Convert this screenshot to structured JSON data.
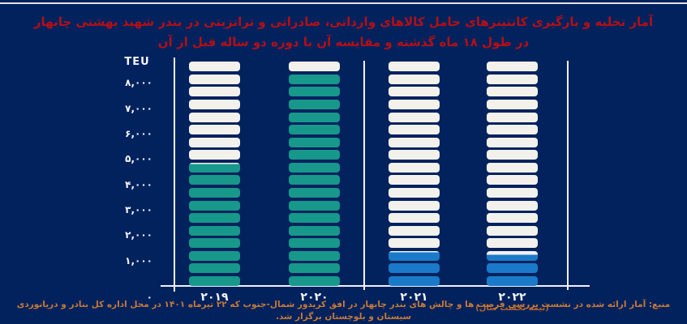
{
  "page": {
    "background": "#02225e",
    "title_line1": "آمار تخلیه و بارگیری کانتینرهای حامل کالاهای وارداتی، صادراتی و ترانزیتی در بندر شهید بهشتی چابهار",
    "title_line2": "در طول ۱۸ ماه گذشته و مقایسه آن با دوره دو ساله قبل از آن",
    "title_color": "#b30f16",
    "source_note": "منبع: آمار ارائه شده در نشست بررسی فرصت ها و چالش های بندر چابهار در افق کریدور شمال-جنوب که ۲۲ تیرماه ۱۴۰۱ در محل اداره کل بنادر و دریانوردی سیستان و بلوچستان برگزار شد.",
    "source_color": "#c97a35"
  },
  "chart_data": {
    "type": "bar",
    "style": "segmented-pictograph-columns",
    "unit_label": "TEU",
    "title": "آمار تخلیه و بارگیری کانتینرهای حامل کالاهای وارداتی، صادراتی و ترانزیتی در بندر شهید بهشتی چابهار در طول ۱۸ ماه گذشته و مقایسه آن با دوره دو ساله قبل از آن",
    "categories": [
      "۲۰۱۹",
      "۲۰۲۰",
      "۲۰۲۱",
      "۲۰۲۲"
    ],
    "values": [
      4800,
      8350,
      1330,
      1230
    ],
    "bar_colors": [
      "#17988a",
      "#17988a",
      "#1a7ac8",
      "#1a7ac8"
    ],
    "empty_segment_color": "#f2f1ec",
    "ylim": [
      0,
      8840
    ],
    "gridlines": false,
    "legend": null,
    "yticks": [
      {
        "value": 8000,
        "label": "۸,۰۰۰"
      },
      {
        "value": 7000,
        "label": "۷,۰۰۰"
      },
      {
        "value": 6000,
        "label": "۶,۰۰۰"
      },
      {
        "value": 5000,
        "label": "۵,۰۰۰"
      },
      {
        "value": 4000,
        "label": "۴,۰۰۰"
      },
      {
        "value": 3000,
        "label": "۳,۰۰۰"
      },
      {
        "value": 2000,
        "label": "۲,۰۰۰"
      },
      {
        "value": 1000,
        "label": "۱,۰۰۰"
      },
      {
        "value": 0,
        "label": "۰"
      }
    ],
    "x_sub_label": {
      "category_index": 3,
      "text": "(نیمه نخست سال)",
      "color": "#b4632a"
    },
    "group_divider_between": [
      "۲۰۲۰",
      "۲۰۲۱"
    ]
  }
}
